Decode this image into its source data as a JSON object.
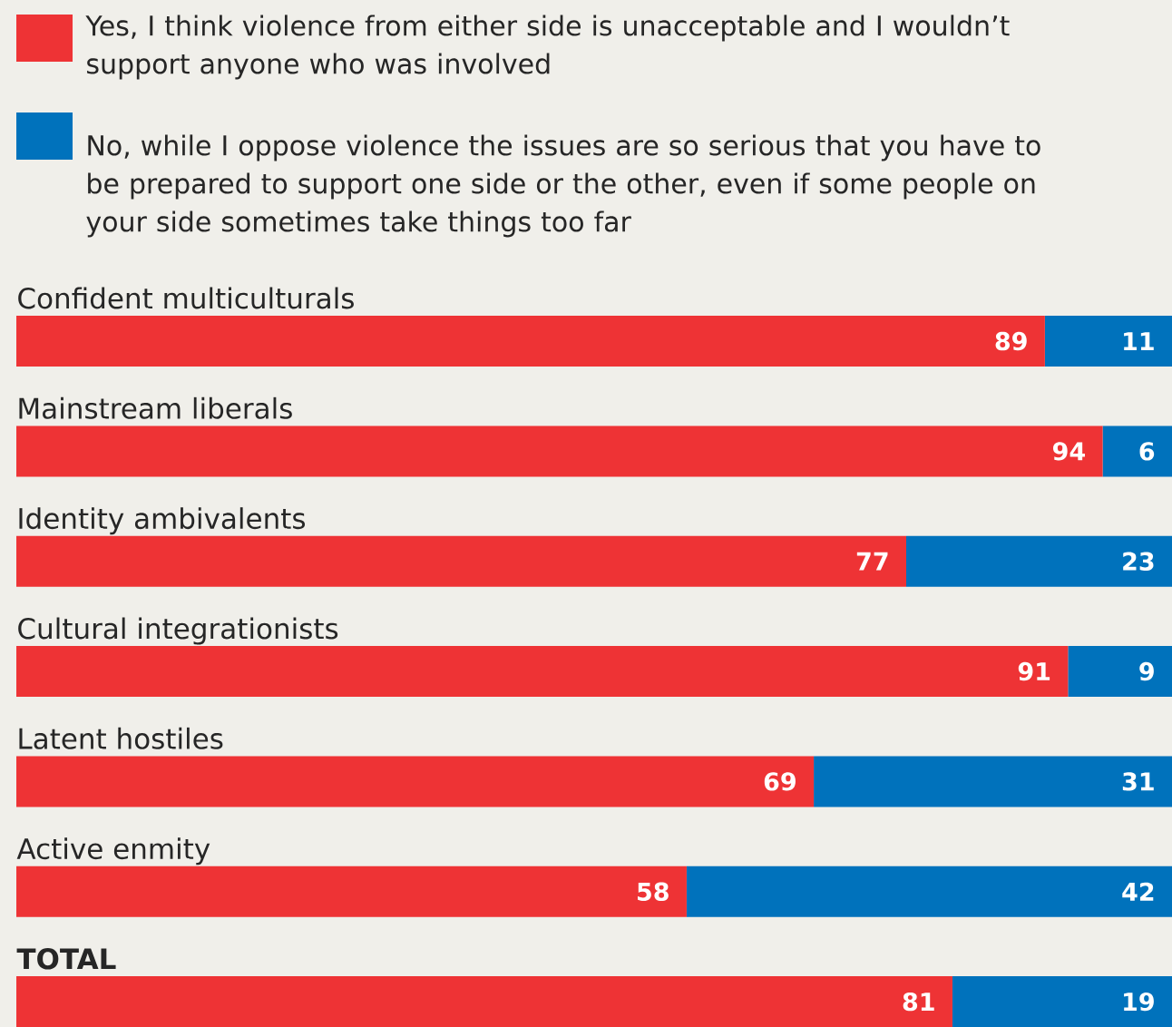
{
  "chart_data": {
    "type": "bar",
    "orientation": "horizontal",
    "stacked": true,
    "data_labels": true,
    "legend": "top",
    "categories": [
      "Confident multiculturals",
      "Mainstream liberals",
      "Identity ambivalents",
      "Cultural integrationists",
      "Latent hostiles",
      "Active enmity",
      "TOTAL"
    ],
    "series": [
      {
        "name": "Yes, I think violence from either side is unacceptable and I wouldn’t support anyone who was involved",
        "color": "#ee3335",
        "values": [
          89,
          94,
          77,
          91,
          69,
          58,
          81
        ]
      },
      {
        "name": "No, while I oppose violence the issues are so serious that you have to be prepared to support one side or the other, even if some people on your side sometimes take things too far",
        "color": "#0072bc",
        "values": [
          11,
          6,
          23,
          9,
          31,
          42,
          19
        ]
      }
    ]
  }
}
